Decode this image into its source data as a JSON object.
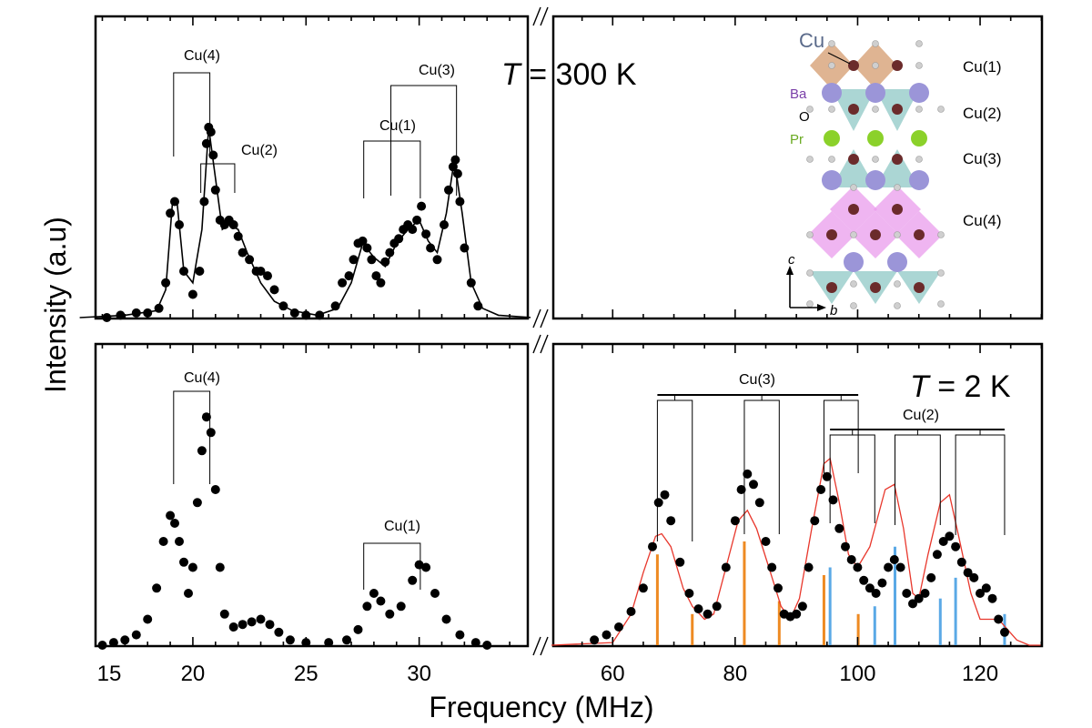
{
  "chart_data": {
    "type": "scatter",
    "xlabel": "Frequency (MHz)",
    "ylabel": "Intensity (a.u)",
    "x_ticks_left": [
      15,
      20,
      25,
      30
    ],
    "x_ticks_right": [
      60,
      80,
      100,
      120
    ],
    "xlim_left": [
      15,
      35
    ],
    "xlim_right": [
      50,
      130
    ],
    "axis_break": true,
    "colors": {
      "points": "#000000",
      "fit_top": "#000000",
      "fit_bottom": "#e8372c",
      "orange": "#ee8a22",
      "blue": "#5aa9e6"
    },
    "panels": [
      {
        "id": "top",
        "temperature_label": "T = 300 K",
        "temperature_symbol": "T",
        "temperature_value": " = 300 K",
        "site_labels": [
          "Cu(4)",
          "Cu(2)",
          "Cu(1)",
          "Cu(3)"
        ],
        "points": [
          [
            16.2,
            0.0
          ],
          [
            16.8,
            0.01
          ],
          [
            17.5,
            0.02
          ],
          [
            18.0,
            0.02
          ],
          [
            18.5,
            0.04
          ],
          [
            18.8,
            0.15
          ],
          [
            19.0,
            0.45
          ],
          [
            19.2,
            0.5
          ],
          [
            19.4,
            0.4
          ],
          [
            19.6,
            0.2
          ],
          [
            20.0,
            0.1
          ],
          [
            20.3,
            0.2
          ],
          [
            20.5,
            0.5
          ],
          [
            20.6,
            0.75
          ],
          [
            20.7,
            0.82
          ],
          [
            20.8,
            0.8
          ],
          [
            20.9,
            0.7
          ],
          [
            21.0,
            0.55
          ],
          [
            21.2,
            0.42
          ],
          [
            21.4,
            0.4
          ],
          [
            21.6,
            0.42
          ],
          [
            21.8,
            0.4
          ],
          [
            22.0,
            0.35
          ],
          [
            22.2,
            0.28
          ],
          [
            22.5,
            0.25
          ],
          [
            22.8,
            0.2
          ],
          [
            23.0,
            0.2
          ],
          [
            23.3,
            0.18
          ],
          [
            23.6,
            0.12
          ],
          [
            24.0,
            0.05
          ],
          [
            24.5,
            0.02
          ],
          [
            25.0,
            0.01
          ],
          [
            25.6,
            0.01
          ],
          [
            26.3,
            0.05
          ],
          [
            26.6,
            0.15
          ],
          [
            26.9,
            0.18
          ],
          [
            27.1,
            0.25
          ],
          [
            27.3,
            0.32
          ],
          [
            27.5,
            0.33
          ],
          [
            27.7,
            0.3
          ],
          [
            27.9,
            0.25
          ],
          [
            28.1,
            0.18
          ],
          [
            28.3,
            0.15
          ],
          [
            28.5,
            0.24
          ],
          [
            28.7,
            0.28
          ],
          [
            28.9,
            0.32
          ],
          [
            29.1,
            0.34
          ],
          [
            29.3,
            0.38
          ],
          [
            29.5,
            0.4
          ],
          [
            29.7,
            0.38
          ],
          [
            29.9,
            0.42
          ],
          [
            30.1,
            0.48
          ],
          [
            30.3,
            0.36
          ],
          [
            30.5,
            0.3
          ],
          [
            30.8,
            0.25
          ],
          [
            31.1,
            0.4
          ],
          [
            31.3,
            0.55
          ],
          [
            31.5,
            0.65
          ],
          [
            31.6,
            0.68
          ],
          [
            31.7,
            0.62
          ],
          [
            31.8,
            0.5
          ],
          [
            32.0,
            0.3
          ],
          [
            32.3,
            0.15
          ],
          [
            32.6,
            0.05
          ]
        ],
        "fit": [
          [
            15.0,
            0.0
          ],
          [
            17.0,
            0.01
          ],
          [
            18.4,
            0.03
          ],
          [
            18.8,
            0.12
          ],
          [
            19.1,
            0.5
          ],
          [
            19.3,
            0.5
          ],
          [
            19.6,
            0.2
          ],
          [
            20.0,
            0.15
          ],
          [
            20.4,
            0.38
          ],
          [
            20.7,
            0.82
          ],
          [
            21.0,
            0.6
          ],
          [
            21.3,
            0.38
          ],
          [
            21.6,
            0.4
          ],
          [
            22.0,
            0.38
          ],
          [
            22.4,
            0.28
          ],
          [
            23.0,
            0.15
          ],
          [
            23.6,
            0.07
          ],
          [
            24.4,
            0.03
          ],
          [
            25.5,
            0.01
          ],
          [
            26.4,
            0.04
          ],
          [
            27.0,
            0.15
          ],
          [
            27.5,
            0.32
          ],
          [
            28.0,
            0.26
          ],
          [
            28.5,
            0.22
          ],
          [
            29.0,
            0.32
          ],
          [
            29.5,
            0.38
          ],
          [
            30.0,
            0.42
          ],
          [
            30.4,
            0.33
          ],
          [
            30.8,
            0.28
          ],
          [
            31.2,
            0.45
          ],
          [
            31.55,
            0.68
          ],
          [
            31.9,
            0.45
          ],
          [
            32.3,
            0.15
          ],
          [
            32.8,
            0.04
          ],
          [
            33.5,
            0.01
          ],
          [
            35.0,
            0.0
          ]
        ]
      },
      {
        "id": "bottom",
        "temperature_label": "T = 2 K",
        "temperature_symbol": "T",
        "temperature_value": " = 2 K",
        "site_labels": [
          "Cu(4)",
          "Cu(1)",
          "Cu(3)",
          "Cu(2)"
        ],
        "points": [
          [
            16.0,
            0.0
          ],
          [
            16.5,
            0.01
          ],
          [
            17.0,
            0.02
          ],
          [
            17.5,
            0.04
          ],
          [
            18.0,
            0.1
          ],
          [
            18.4,
            0.22
          ],
          [
            18.7,
            0.4
          ],
          [
            19.0,
            0.5
          ],
          [
            19.2,
            0.47
          ],
          [
            19.4,
            0.4
          ],
          [
            19.6,
            0.32
          ],
          [
            19.8,
            0.2
          ],
          [
            20.0,
            0.3
          ],
          [
            20.2,
            0.55
          ],
          [
            20.4,
            0.75
          ],
          [
            20.6,
            0.88
          ],
          [
            20.8,
            0.82
          ],
          [
            21.0,
            0.6
          ],
          [
            21.2,
            0.3
          ],
          [
            21.4,
            0.12
          ],
          [
            21.8,
            0.07
          ],
          [
            22.2,
            0.08
          ],
          [
            22.6,
            0.09
          ],
          [
            23.0,
            0.1
          ],
          [
            23.4,
            0.08
          ],
          [
            23.8,
            0.05
          ],
          [
            24.3,
            0.02
          ],
          [
            25.0,
            0.01
          ],
          [
            26.0,
            0.01
          ],
          [
            26.8,
            0.02
          ],
          [
            27.3,
            0.06
          ],
          [
            27.7,
            0.15
          ],
          [
            28.0,
            0.2
          ],
          [
            28.3,
            0.17
          ],
          [
            28.7,
            0.12
          ],
          [
            29.2,
            0.15
          ],
          [
            29.7,
            0.25
          ],
          [
            30.0,
            0.31
          ],
          [
            30.3,
            0.3
          ],
          [
            30.7,
            0.2
          ],
          [
            31.2,
            0.1
          ],
          [
            31.8,
            0.04
          ],
          [
            32.5,
            0.01
          ],
          [
            33.0,
            0.0
          ],
          [
            57.0,
            0.02
          ],
          [
            59.0,
            0.04
          ],
          [
            61.0,
            0.07
          ],
          [
            63.0,
            0.13
          ],
          [
            65.0,
            0.22
          ],
          [
            66.5,
            0.38
          ],
          [
            67.5,
            0.55
          ],
          [
            68.5,
            0.58
          ],
          [
            69.5,
            0.48
          ],
          [
            71.0,
            0.32
          ],
          [
            72.5,
            0.2
          ],
          [
            74.0,
            0.14
          ],
          [
            75.5,
            0.12
          ],
          [
            77.0,
            0.15
          ],
          [
            78.5,
            0.3
          ],
          [
            80.0,
            0.48
          ],
          [
            81.0,
            0.6
          ],
          [
            82.0,
            0.66
          ],
          [
            83.0,
            0.62
          ],
          [
            84.0,
            0.55
          ],
          [
            85.0,
            0.4
          ],
          [
            86.0,
            0.3
          ],
          [
            87.0,
            0.22
          ],
          [
            88.0,
            0.12
          ],
          [
            89.0,
            0.11
          ],
          [
            90.0,
            0.12
          ],
          [
            91.0,
            0.15
          ],
          [
            92.0,
            0.3
          ],
          [
            93.0,
            0.48
          ],
          [
            94.0,
            0.6
          ],
          [
            95.0,
            0.65
          ],
          [
            96.0,
            0.56
          ],
          [
            97.0,
            0.45
          ],
          [
            98.0,
            0.38
          ],
          [
            99.0,
            0.33
          ],
          [
            100.0,
            0.3
          ],
          [
            101.0,
            0.25
          ],
          [
            102.0,
            0.22
          ],
          [
            103.0,
            0.2
          ],
          [
            104.0,
            0.24
          ],
          [
            105.0,
            0.3
          ],
          [
            106.0,
            0.33
          ],
          [
            107.0,
            0.3
          ],
          [
            108.0,
            0.2
          ],
          [
            109.0,
            0.16
          ],
          [
            110.0,
            0.18
          ],
          [
            111.0,
            0.2
          ],
          [
            112.0,
            0.26
          ],
          [
            113.0,
            0.35
          ],
          [
            114.0,
            0.4
          ],
          [
            115.0,
            0.42
          ],
          [
            116.0,
            0.38
          ],
          [
            117.0,
            0.32
          ],
          [
            118.0,
            0.28
          ],
          [
            119.0,
            0.26
          ],
          [
            120.0,
            0.2
          ],
          [
            121.0,
            0.22
          ],
          [
            122.0,
            0.18
          ],
          [
            123.0,
            0.1
          ],
          [
            124.0,
            0.05
          ]
        ],
        "fit": [
          [
            50.0,
            0.0
          ],
          [
            60.0,
            0.01
          ],
          [
            63.0,
            0.12
          ],
          [
            65.0,
            0.28
          ],
          [
            67.0,
            0.42
          ],
          [
            68.0,
            0.43
          ],
          [
            69.5,
            0.38
          ],
          [
            71.5,
            0.22
          ],
          [
            73.0,
            0.15
          ],
          [
            75.0,
            0.1
          ],
          [
            76.5,
            0.12
          ],
          [
            78.5,
            0.3
          ],
          [
            80.5,
            0.48
          ],
          [
            82.0,
            0.52
          ],
          [
            83.5,
            0.45
          ],
          [
            85.5,
            0.3
          ],
          [
            87.5,
            0.15
          ],
          [
            89.0,
            0.1
          ],
          [
            90.5,
            0.18
          ],
          [
            92.5,
            0.45
          ],
          [
            94.5,
            0.7
          ],
          [
            95.5,
            0.72
          ],
          [
            97.0,
            0.55
          ],
          [
            98.5,
            0.35
          ],
          [
            100.0,
            0.3
          ],
          [
            102.0,
            0.38
          ],
          [
            104.5,
            0.6
          ],
          [
            106.0,
            0.62
          ],
          [
            107.5,
            0.45
          ],
          [
            109.0,
            0.2
          ],
          [
            110.0,
            0.18
          ],
          [
            111.5,
            0.35
          ],
          [
            113.5,
            0.55
          ],
          [
            115.0,
            0.58
          ],
          [
            116.5,
            0.42
          ],
          [
            118.5,
            0.2
          ],
          [
            120.0,
            0.1
          ],
          [
            121.5,
            0.1
          ],
          [
            123.0,
            0.1
          ],
          [
            124.5,
            0.06
          ],
          [
            126.0,
            0.02
          ],
          [
            128.0,
            0.0
          ],
          [
            130.0,
            0.0
          ]
        ],
        "sticks_orange": [
          [
            67.3,
            0.35
          ],
          [
            73.0,
            0.12
          ],
          [
            81.5,
            0.4
          ],
          [
            87.2,
            0.17
          ],
          [
            94.5,
            0.27
          ],
          [
            100.1,
            0.12
          ]
        ],
        "sticks_blue": [
          [
            95.5,
            0.3
          ],
          [
            102.8,
            0.15
          ],
          [
            106.1,
            0.38
          ],
          [
            113.5,
            0.18
          ],
          [
            116.0,
            0.26
          ],
          [
            124.0,
            0.12
          ]
        ]
      }
    ],
    "inset": {
      "cu_label": "Cu",
      "ba_label": "Ba",
      "o_label": "O",
      "pr_label": "Pr",
      "row_labels": [
        "Cu(1)",
        "Cu(2)",
        "Cu(3)",
        "Cu(4)"
      ],
      "axis_c": "c",
      "axis_b": "b",
      "colors": {
        "cu": "#6b2b2b",
        "ba": "#9b95d8",
        "pr": "#8bd12a",
        "o": "#cfcfcf",
        "oct_top": "#d9a77f",
        "tri": "#9ccfcc",
        "oct_pink": "#e99cec",
        "ba_text": "#7a3fa8",
        "pr_text": "#6aaa22",
        "cu_text": "#5a6a8a"
      }
    }
  }
}
